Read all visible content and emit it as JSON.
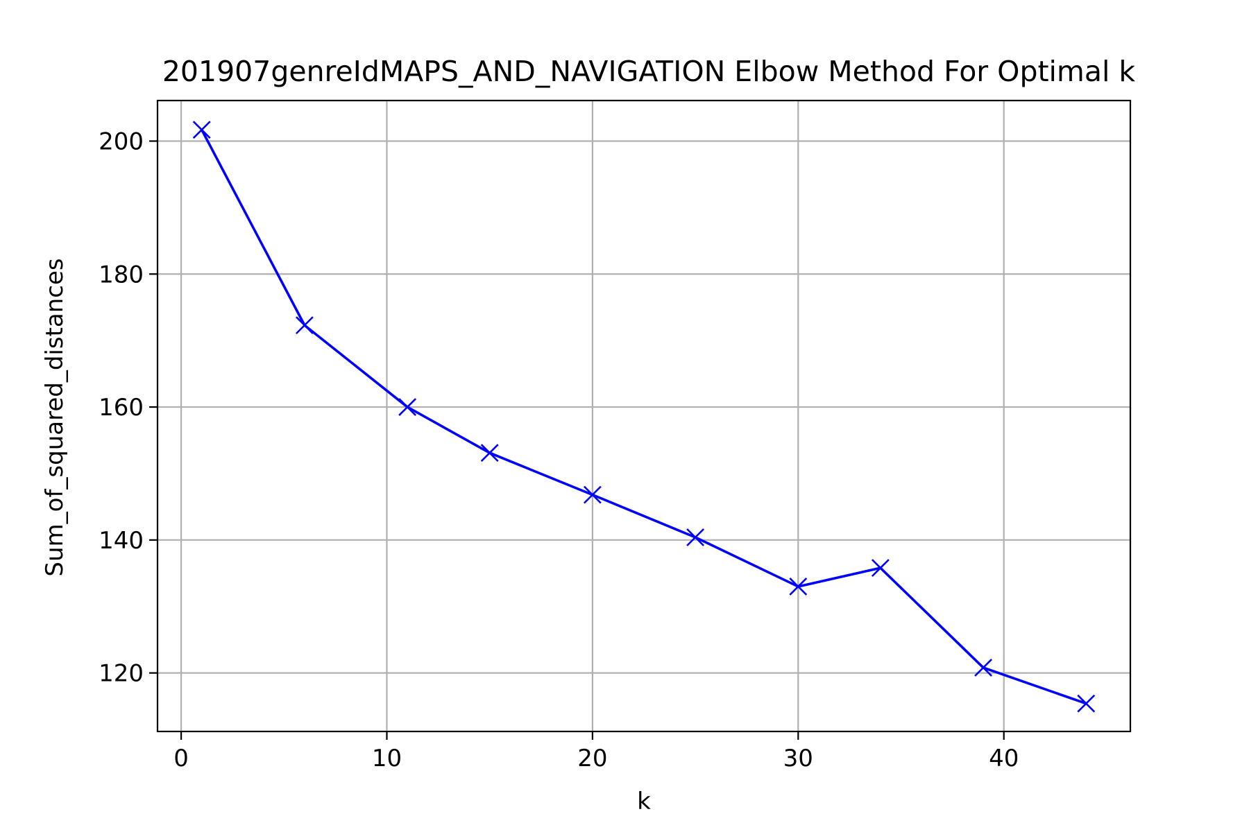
{
  "chart_data": {
    "type": "line",
    "title": "201907genreIdMAPS_AND_NAVIGATION Elbow Method For Optimal k",
    "xlabel": "k",
    "ylabel": "Sum_of_squared_distances",
    "xlim": [
      -1.15,
      46.15
    ],
    "ylim": [
      111.2,
      206.1
    ],
    "xticks": [
      0,
      10,
      20,
      30,
      40
    ],
    "yticks": [
      120,
      140,
      160,
      180,
      200
    ],
    "grid": true,
    "marker": "x",
    "color": "#0000ff",
    "series": [
      {
        "x": [
          1,
          6,
          11,
          15,
          20,
          25,
          30,
          34,
          39,
          44
        ],
        "y": [
          201.7,
          172.3,
          160.0,
          153.1,
          146.8,
          140.4,
          133.0,
          135.8,
          120.8,
          115.4
        ]
      }
    ]
  }
}
